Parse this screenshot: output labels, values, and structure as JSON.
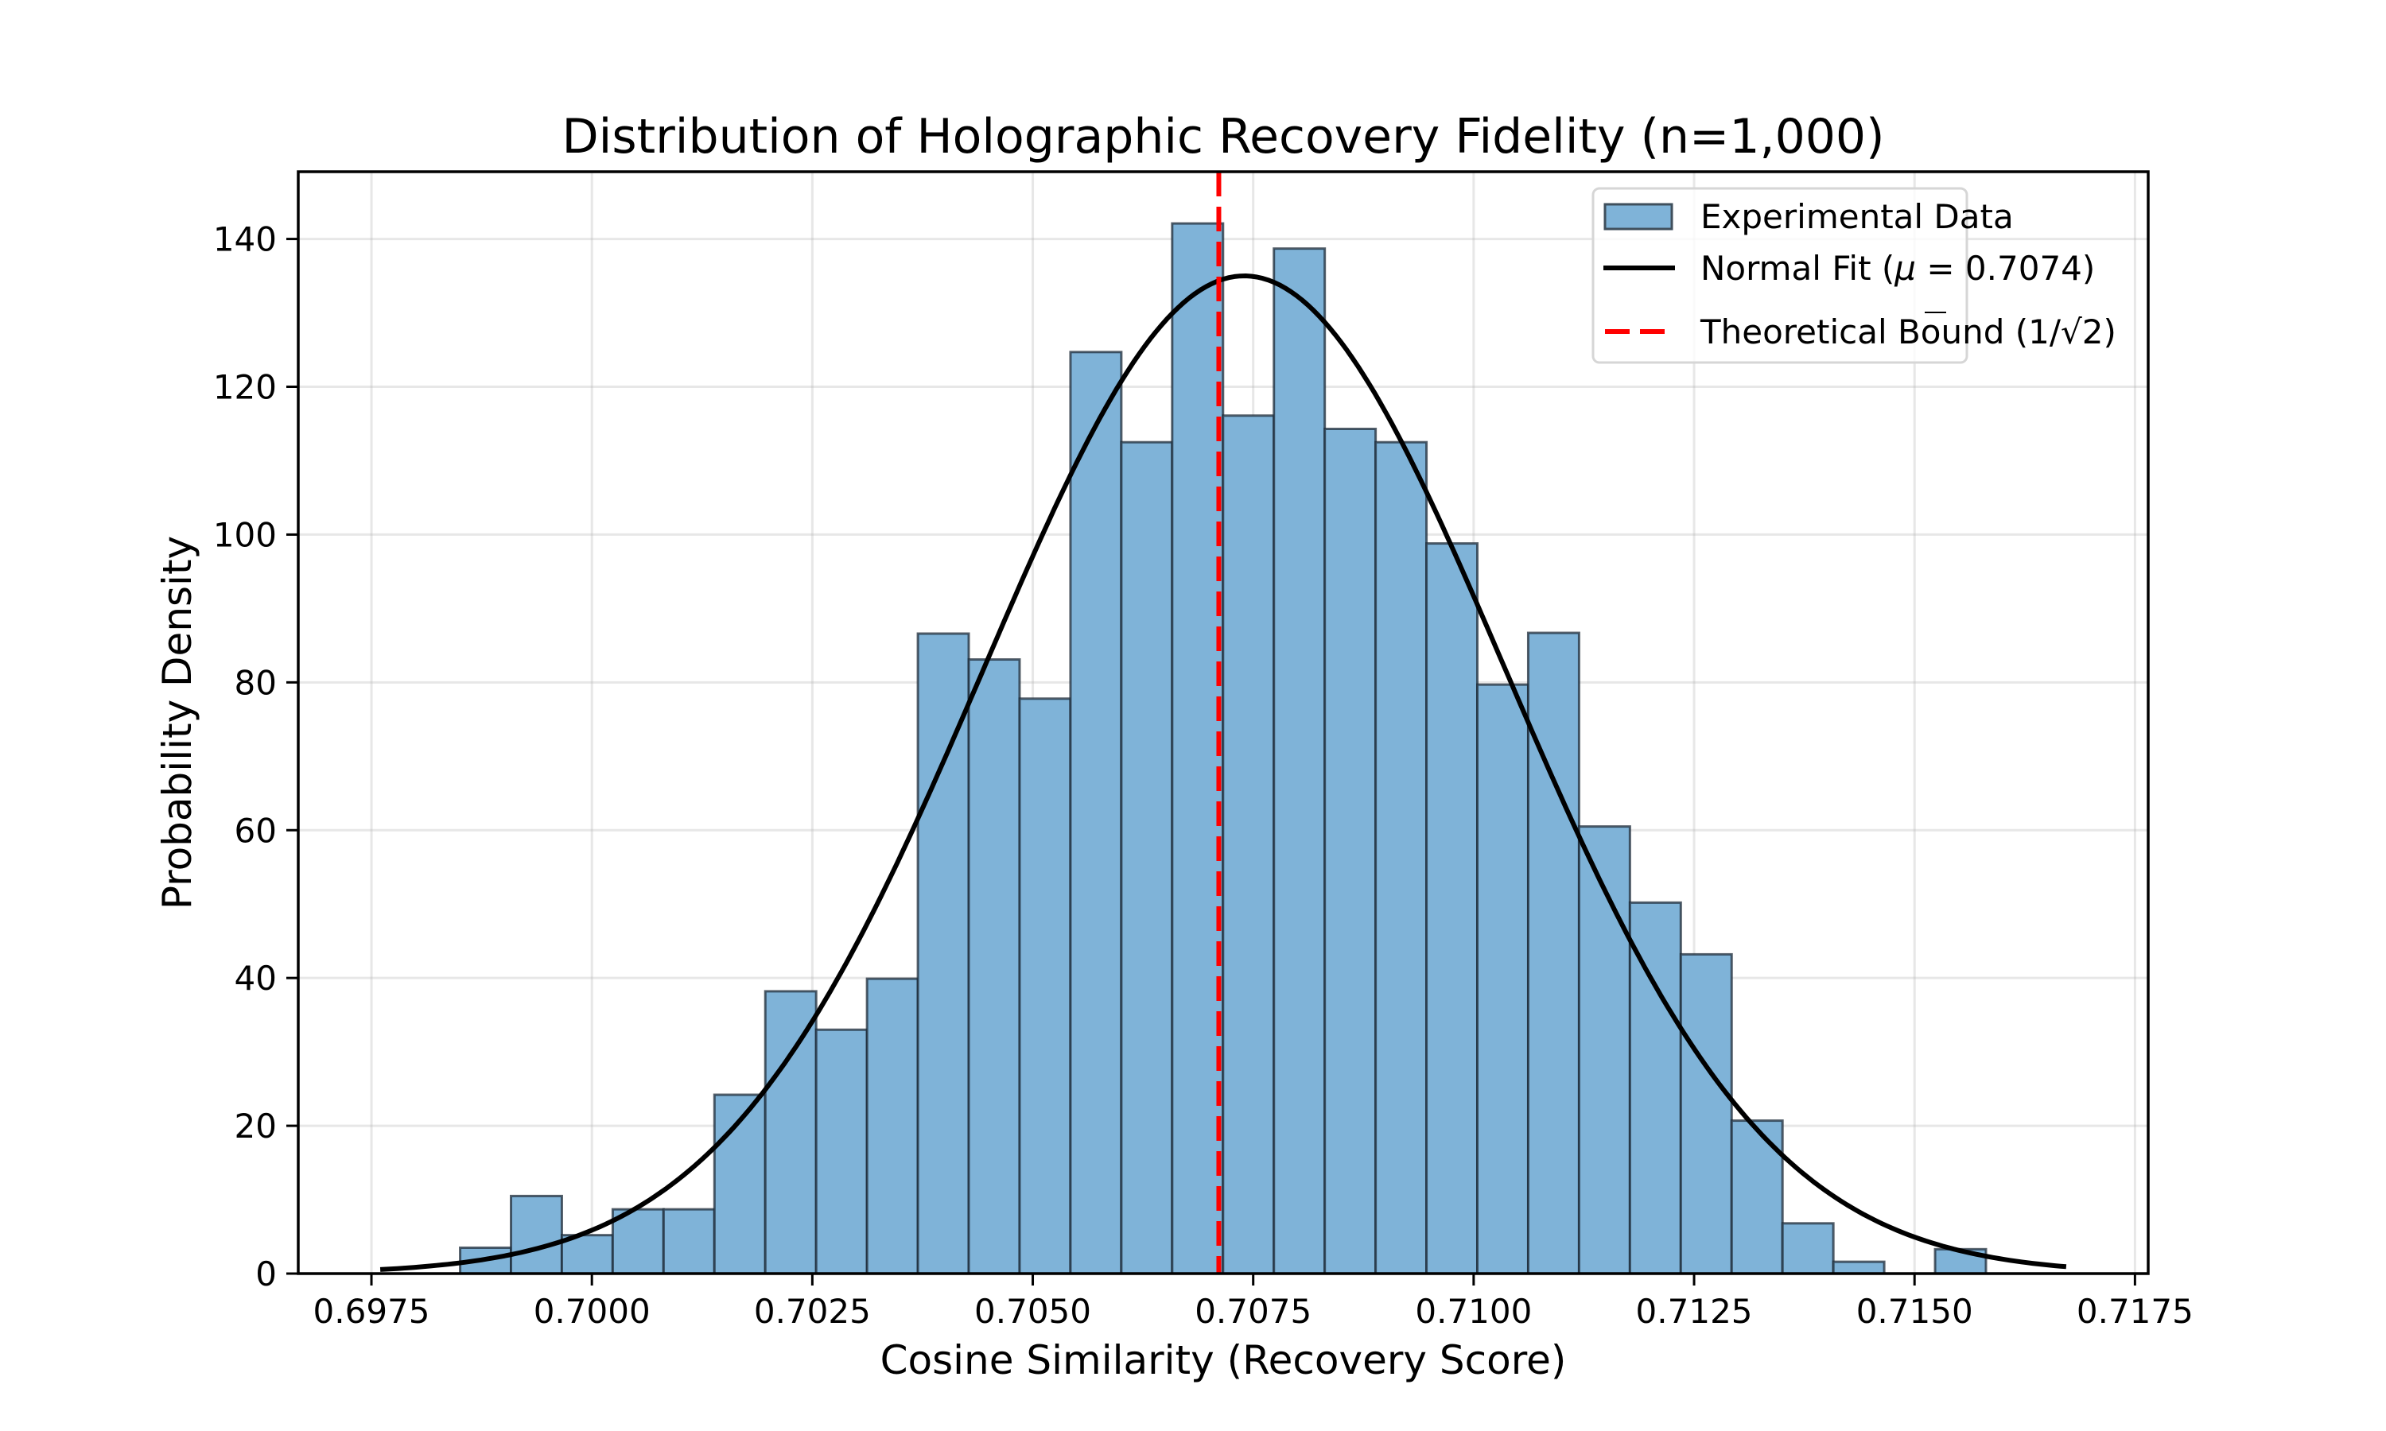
{
  "chart_data": {
    "type": "bar",
    "subtype": "histogram-with-fit",
    "title": "Distribution of Holographic Recovery Fidelity (n=1,000)",
    "xlabel": "Cosine Similarity (Recovery Score)",
    "ylabel": "Probability Density",
    "xlim": [
      0.69667,
      0.71765
    ],
    "ylim": [
      0,
      149.1
    ],
    "grid": true,
    "legend_position": "top-right",
    "x_ticks": [
      0.6975,
      0.7,
      0.7025,
      0.705,
      0.7075,
      0.71,
      0.7125,
      0.715,
      0.7175
    ],
    "x_tick_labels": [
      "0.6975",
      "0.7000",
      "0.7025",
      "0.7050",
      "0.7075",
      "0.7100",
      "0.7125",
      "0.7150",
      "0.7175"
    ],
    "y_ticks": [
      0,
      20,
      40,
      60,
      80,
      100,
      120,
      140
    ],
    "y_tick_labels": [
      "0",
      "20",
      "40",
      "60",
      "80",
      "100",
      "120",
      "140"
    ],
    "histogram": {
      "name": "Experimental Data",
      "color": "#7fb3d8",
      "edge_color": "#1e2b38",
      "bin_start": 0.698506,
      "bin_width": 0.0005768,
      "values": [
        3.5,
        10.5,
        5.2,
        8.7,
        8.7,
        24.2,
        38.2,
        33.0,
        39.9,
        86.6,
        83.1,
        77.8,
        124.7,
        112.5,
        142.1,
        116.1,
        138.7,
        114.3,
        112.5,
        98.8,
        79.7,
        86.7,
        60.5,
        50.2,
        43.2,
        20.7,
        6.8,
        1.6,
        0,
        3.3
      ]
    },
    "fit": {
      "name": "Normal Fit",
      "mu": 0.7074,
      "sigma": 0.002955,
      "x_range": [
        0.6976,
        0.71672
      ],
      "color": "#000000"
    },
    "reference_line": {
      "name": "Theoretical Bound",
      "x": 0.70711,
      "color": "#ff0000",
      "style": "dashed"
    },
    "legend": [
      {
        "label_prefix": "Experimental Data",
        "kind": "patch"
      },
      {
        "label_prefix": "Normal Fit (",
        "mu_symbol": "μ",
        "mu_text": " = 0.7074)",
        "kind": "line"
      },
      {
        "label_prefix": "Theoretical Bound (1/",
        "sqrt_arg": "2",
        "label_suffix": ")",
        "kind": "dashed"
      }
    ]
  }
}
